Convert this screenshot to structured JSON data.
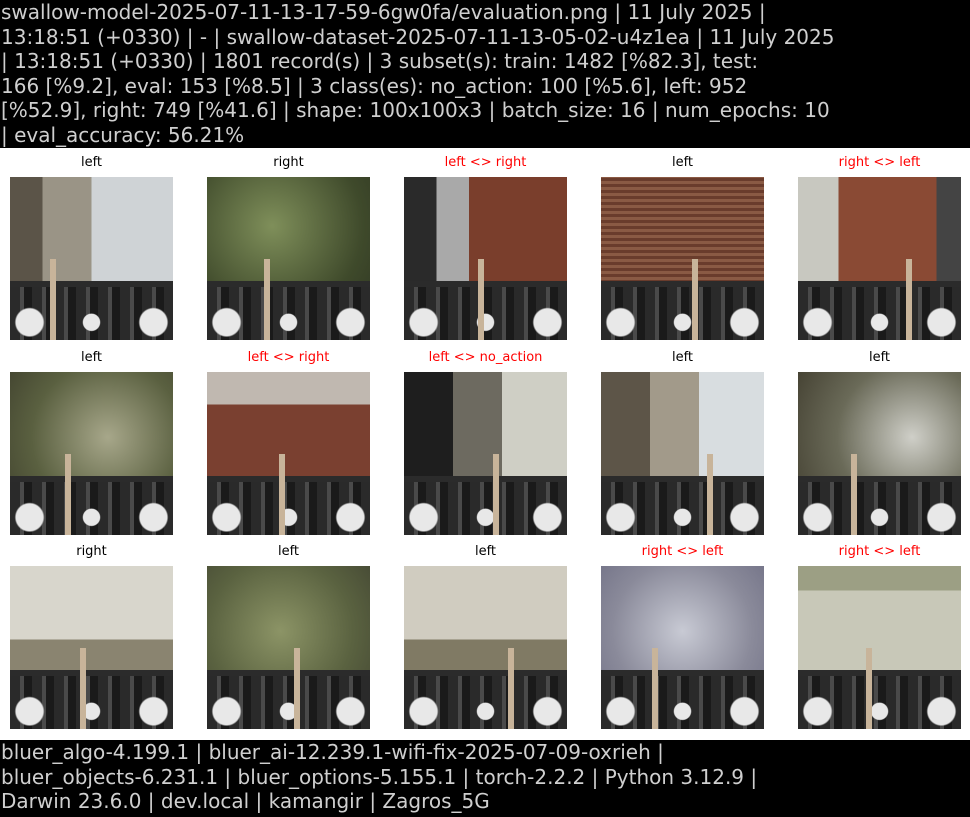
{
  "header": {
    "lines": [
      "swallow-model-2025-07-11-13-17-59-6gw0fa/evaluation.png | 11 July 2025 |",
      "13:18:51 (+0330) | - | swallow-dataset-2025-07-11-13-05-02-u4z1ea | 11 July 2025",
      "| 13:18:51 (+0330) | 1801 record(s) | 3 subset(s): train: 1482 [%82.3], test:",
      "166 [%9.2], eval: 153 [%8.5] | 3 class(es): no_action: 100 [%5.6], left: 952",
      "[%52.9], right: 749 [%41.6] | shape: 100x100x3 | batch_size: 16 | num_epochs: 10",
      "| eval_accuracy: 56.21%"
    ]
  },
  "grid": {
    "cells": [
      {
        "label": "left",
        "mis": false
      },
      {
        "label": "right",
        "mis": false
      },
      {
        "label": "left <> right",
        "mis": true
      },
      {
        "label": "left",
        "mis": false
      },
      {
        "label": "right <> left",
        "mis": true
      },
      {
        "label": "left",
        "mis": false
      },
      {
        "label": "left <> right",
        "mis": true
      },
      {
        "label": "left <> no_action",
        "mis": true
      },
      {
        "label": "left",
        "mis": false
      },
      {
        "label": "left",
        "mis": false
      },
      {
        "label": "right",
        "mis": false
      },
      {
        "label": "left",
        "mis": false
      },
      {
        "label": "left",
        "mis": false
      },
      {
        "label": "right <> left",
        "mis": true
      },
      {
        "label": "right <> left",
        "mis": true
      }
    ]
  },
  "footer": {
    "lines": [
      "bluer_algo-4.199.1 | bluer_ai-12.239.1-wifi-fix-2025-07-09-oxrieh |",
      "bluer_objects-6.231.1 | bluer_options-5.155.1 | torch-2.2.2 | Python 3.12.9 |",
      "Darwin 23.6.0 | dev.local | kamangir | Zagros_5G"
    ]
  },
  "colors": {
    "correct_label": "#000000",
    "misclassified_label": "#ff0000",
    "banner_bg": "#000000",
    "banner_text": "#cfcfcf"
  }
}
